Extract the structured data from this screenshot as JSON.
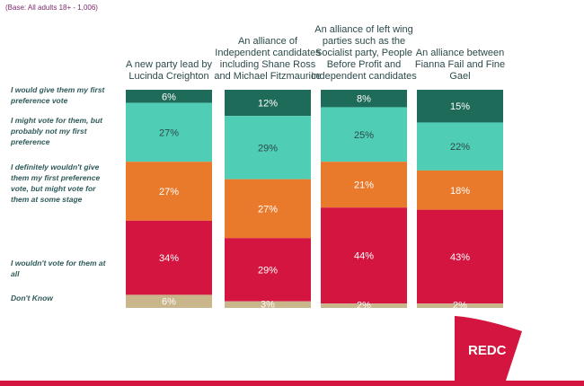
{
  "base_note": "(Base: All adults 18+ - 1,006)",
  "logo_text": "REDC",
  "chart_data": {
    "type": "bar",
    "stacked": true,
    "categories": [
      "A new party lead by Lucinda Creighton",
      "An alliance of Independent candidates including Shane Ross and Michael Fitzmaurice",
      "An alliance of left wing parties such as the Socialist party, People Before Profit and Independent candidates",
      "An alliance between Fianna Fail and Fine Gael"
    ],
    "series": [
      {
        "name": "I would give them my first preference vote",
        "color": "#1f6b5a",
        "text_color": "#ffffff",
        "values": [
          6,
          12,
          8,
          15
        ]
      },
      {
        "name": "I might vote for them, but probably not my first preference",
        "color": "#4fcdb5",
        "text_color": "#2d4a4a",
        "values": [
          27,
          29,
          25,
          22
        ]
      },
      {
        "name": "I definitely wouldn't give them my first preference vote, but might vote for them at some stage",
        "color": "#e97a2b",
        "text_color": "#ffffff",
        "values": [
          27,
          27,
          21,
          18
        ]
      },
      {
        "name": "I wouldn't vote for them at all",
        "color": "#d4153f",
        "text_color": "#ffffff",
        "values": [
          34,
          29,
          44,
          43
        ]
      },
      {
        "name": "Don't Know",
        "color": "#c9b68b",
        "text_color": "#ffffff",
        "values": [
          6,
          3,
          2,
          2
        ]
      }
    ],
    "value_suffix": "%",
    "ylim": [
      0,
      100
    ]
  }
}
